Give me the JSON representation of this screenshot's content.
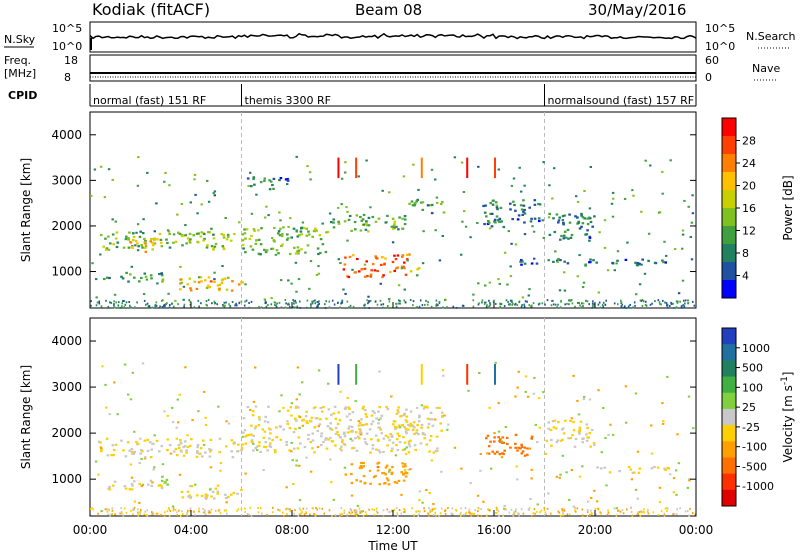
{
  "header": {
    "title": "Kodiak (fitACF)",
    "beam": "Beam 08",
    "date": "30/May/2016"
  },
  "top_panels": {
    "nsky_label": "N.Sky",
    "nsky_ticks": [
      "10^5",
      "10^0"
    ],
    "nsearch_label": "N.Search",
    "nsearch_ticks": [
      "10^5",
      "10^0"
    ],
    "freq_label_1": "Freq.",
    "freq_label_2": "[MHz]",
    "freq_ticks": [
      "18",
      "8"
    ],
    "nave_label": "Nave",
    "nave_ticks": [
      "60",
      "0"
    ],
    "cpid_label": "CPID",
    "cpid_segments": [
      {
        "label": "normal (fast) 151 RF",
        "start_h": 0,
        "end_h": 6
      },
      {
        "label": "themis 3300 RF",
        "start_h": 6,
        "end_h": 18
      },
      {
        "label": "normalsound (fast) 157 RF",
        "start_h": 18,
        "end_h": 24
      }
    ]
  },
  "chart_data": [
    {
      "type": "heatmap",
      "title": "Power",
      "ylabel": "Slant Range [km]",
      "xlabel": "Time UT",
      "xlim": [
        0,
        24
      ],
      "ylim": [
        200,
        4500
      ],
      "yticks": [
        "1000",
        "2000",
        "3000",
        "4000"
      ],
      "xticks": [
        "00:00",
        "04:00",
        "08:00",
        "12:00",
        "16:00",
        "20:00",
        "00:00"
      ],
      "colorbar": {
        "label": "Power [dB]",
        "ticks": [
          "28",
          "24",
          "20",
          "16",
          "12",
          "8",
          "4"
        ],
        "colors": [
          "#ff0000",
          "#ff4000",
          "#ff8000",
          "#ffc000",
          "#c8d000",
          "#80c020",
          "#40a040",
          "#208060",
          "#2050a0",
          "#0000ff"
        ]
      },
      "regions": [
        {
          "t0": 0.3,
          "t1": 6.0,
          "r0": 1500,
          "r1": 1900,
          "power": 12
        },
        {
          "t0": 1.5,
          "t1": 3.0,
          "r0": 1450,
          "r1": 1750,
          "power": 18
        },
        {
          "t0": 3.5,
          "t1": 6.0,
          "r0": 600,
          "r1": 900,
          "power": 18
        },
        {
          "t0": 4.5,
          "t1": 5.5,
          "r0": 700,
          "r1": 850,
          "power": 22
        },
        {
          "t0": 0.5,
          "t1": 3.0,
          "r0": 800,
          "r1": 1000,
          "power": 8
        },
        {
          "t0": 6.0,
          "t1": 9.5,
          "r0": 1400,
          "r1": 2000,
          "power": 12
        },
        {
          "t0": 9.5,
          "t1": 12.5,
          "r0": 1900,
          "r1": 2300,
          "power": 10
        },
        {
          "t0": 12.5,
          "t1": 14.0,
          "r0": 2300,
          "r1": 2600,
          "power": 8
        },
        {
          "t0": 10.0,
          "t1": 12.6,
          "r0": 900,
          "r1": 1400,
          "power": 24
        },
        {
          "t0": 12.5,
          "t1": 13.0,
          "r0": 900,
          "r1": 1100,
          "power": 14
        },
        {
          "t0": 15.5,
          "t1": 17.8,
          "r0": 2000,
          "r1": 2600,
          "power": 6
        },
        {
          "t0": 18.0,
          "t1": 20.0,
          "r0": 1700,
          "r1": 2300,
          "power": 6
        },
        {
          "t0": 6.2,
          "t1": 7.8,
          "r0": 2800,
          "r1": 3100,
          "power": 6
        },
        {
          "t0": 17.0,
          "t1": 23.0,
          "r0": 1150,
          "r1": 1300,
          "power": 4
        }
      ]
    },
    {
      "type": "heatmap",
      "title": "Velocity",
      "ylabel": "Slant Range [km]",
      "xlabel": "Time UT",
      "xlim": [
        0,
        24
      ],
      "ylim": [
        200,
        4500
      ],
      "yticks": [
        "1000",
        "2000",
        "3000",
        "4000"
      ],
      "xticks": [
        "00:00",
        "04:00",
        "08:00",
        "12:00",
        "16:00",
        "20:00",
        "00:00"
      ],
      "colorbar": {
        "label": "Velocity [m s^-1]",
        "ticks": [
          "1000",
          "500",
          "100",
          "25",
          "-25",
          "-100",
          "-500",
          "-1000"
        ],
        "colors": [
          "#2040c0",
          "#2070a0",
          "#208060",
          "#40b040",
          "#80d040",
          "#c8c8c8",
          "#ffd000",
          "#ffa000",
          "#ff7000",
          "#ff3000",
          "#e00000"
        ]
      },
      "regions": [
        {
          "t0": 0.3,
          "t1": 6.0,
          "r0": 1500,
          "r1": 1900,
          "velocity": 0
        },
        {
          "t0": 3.5,
          "t1": 6.0,
          "r0": 600,
          "r1": 900,
          "velocity": 0
        },
        {
          "t0": 6.0,
          "t1": 14.0,
          "r0": 1600,
          "r1": 2600,
          "velocity": 0
        },
        {
          "t0": 10.0,
          "t1": 12.6,
          "r0": 900,
          "r1": 1400,
          "velocity": -150
        },
        {
          "t0": 15.5,
          "t1": 17.5,
          "r0": 1500,
          "r1": 2000,
          "velocity": -300
        },
        {
          "t0": 18.0,
          "t1": 20.0,
          "r0": 1700,
          "r1": 2300,
          "velocity": 0
        },
        {
          "t0": 0.5,
          "t1": 3.0,
          "r0": 800,
          "r1": 1000,
          "velocity": 0
        },
        {
          "t0": 2.8,
          "t1": 3.2,
          "r0": 900,
          "r1": 1200,
          "velocity": 150
        },
        {
          "t0": 20.0,
          "t1": 23.0,
          "r0": 1150,
          "r1": 1300,
          "velocity": 0
        }
      ]
    }
  ]
}
